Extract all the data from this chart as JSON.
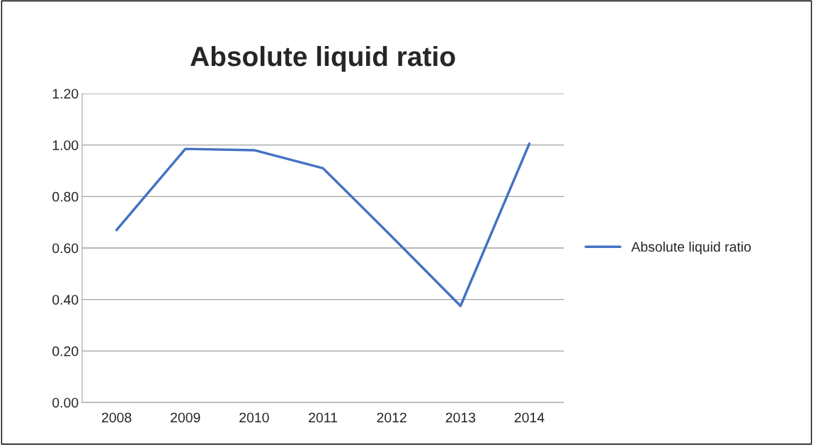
{
  "chart_data": {
    "type": "line",
    "title": "Absolute liquid ratio",
    "categories": [
      "2008",
      "2009",
      "2010",
      "2011",
      "2012",
      "2013",
      "2014"
    ],
    "series": [
      {
        "name": "Absolute liquid ratio",
        "color": "#4472c4",
        "values": [
          0.67,
          0.985,
          0.98,
          0.91,
          0.645,
          0.375,
          1.005
        ]
      }
    ],
    "ylim": [
      0,
      1.2
    ],
    "yticks": [
      {
        "value": 0,
        "label": "0.00"
      },
      {
        "value": 0.2,
        "label": "0.20"
      },
      {
        "value": 0.4,
        "label": "0.40"
      },
      {
        "value": 0.6,
        "label": "0.60"
      },
      {
        "value": 0.8,
        "label": "0.80"
      },
      {
        "value": 1.0,
        "label": "1.00"
      },
      {
        "value": 1.2,
        "label": "1.20"
      }
    ],
    "grid": "y",
    "legend": "right",
    "marker": "none",
    "line_style": "solid"
  }
}
